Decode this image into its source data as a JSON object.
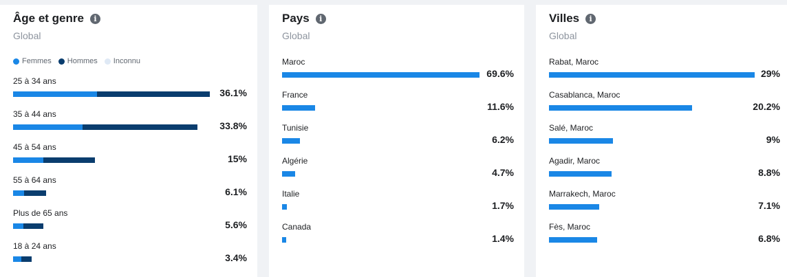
{
  "colors": {
    "women": "#1a87e6",
    "men": "#0a3d6e",
    "unknown": "#dfe9f5",
    "bar": "#1a87e6"
  },
  "age_gender": {
    "title": "Âge et genre",
    "subtitle": "Global",
    "legend": [
      "Femmes",
      "Hommes",
      "Inconnu"
    ]
  },
  "countries": {
    "title": "Pays",
    "subtitle": "Global"
  },
  "cities": {
    "title": "Villes",
    "subtitle": "Global"
  },
  "chart_data": [
    {
      "type": "bar",
      "title": "Âge et genre",
      "categories": [
        "25 à 34 ans",
        "35 à 44 ans",
        "45 à 54 ans",
        "55 à 64 ans",
        "Plus de 65 ans",
        "18 à 24 ans"
      ],
      "values": [
        36.1,
        33.8,
        15,
        6.1,
        5.6,
        3.4
      ],
      "value_labels": [
        "36.1%",
        "33.8%",
        "15%",
        "6.1%",
        "5.6%",
        "3.4%"
      ],
      "series": [
        {
          "name": "Femmes",
          "values": [
            15.4,
            12.8,
            5.5,
            2.0,
            1.9,
            1.5
          ]
        },
        {
          "name": "Hommes",
          "values": [
            20.7,
            21.0,
            9.5,
            4.1,
            3.7,
            1.9
          ]
        }
      ],
      "stacked": true
    },
    {
      "type": "bar",
      "title": "Pays",
      "categories": [
        "Maroc",
        "France",
        "Tunisie",
        "Algérie",
        "Italie",
        "Canada"
      ],
      "values": [
        69.6,
        11.6,
        6.2,
        4.7,
        1.7,
        1.4
      ],
      "value_labels": [
        "69.6%",
        "11.6%",
        "6.2%",
        "4.7%",
        "1.7%",
        "1.4%"
      ]
    },
    {
      "type": "bar",
      "title": "Villes",
      "categories": [
        "Rabat, Maroc",
        "Casablanca, Maroc",
        "Salé, Maroc",
        "Agadir, Maroc",
        "Marrakech, Maroc",
        "Fès, Maroc"
      ],
      "values": [
        29,
        20.2,
        9,
        8.8,
        7.1,
        6.8
      ],
      "value_labels": [
        "29%",
        "20.2%",
        "9%",
        "8.8%",
        "7.1%",
        "6.8%"
      ]
    }
  ]
}
